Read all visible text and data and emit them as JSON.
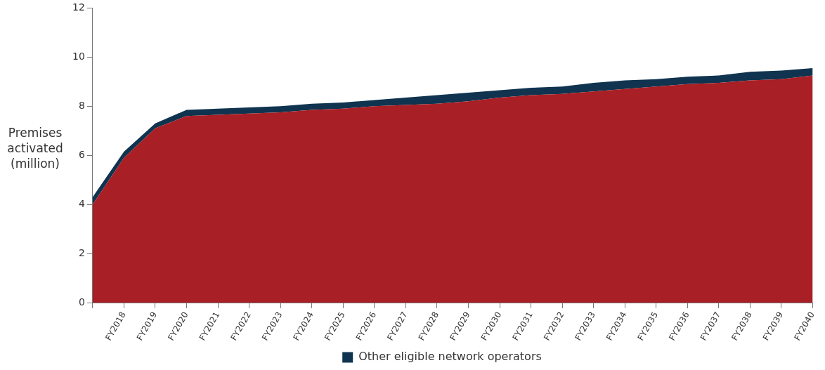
{
  "chart_data": {
    "type": "area",
    "stacked": true,
    "ylabel": "Premises activated (million)",
    "categories": [
      null,
      "FY2018",
      "FY2019",
      "FY2020",
      "FY2021",
      "FY2022",
      "FY2023",
      "FY2024",
      "FY2025",
      "FY2026",
      "FY2027",
      "FY2028",
      "FY2029",
      "FY2030",
      "FY2031",
      "FY2032",
      "FY2033",
      "FY2034",
      "FY2035",
      "FY2036",
      "FY2037",
      "FY2038",
      "FY2039",
      "FY2040"
    ],
    "series": [
      {
        "color": "#a81f25",
        "values": [
          4.0,
          5.9,
          7.1,
          7.6,
          7.65,
          7.7,
          7.75,
          7.85,
          7.9,
          8.0,
          8.05,
          8.1,
          8.2,
          8.35,
          8.45,
          8.5,
          8.6,
          8.7,
          8.8,
          8.9,
          8.95,
          9.05,
          9.1,
          9.25
        ]
      },
      {
        "name": "Other eligible network operators",
        "color": "#10344f",
        "values": [
          0.3,
          0.25,
          0.2,
          0.25,
          0.25,
          0.25,
          0.25,
          0.25,
          0.25,
          0.25,
          0.3,
          0.35,
          0.35,
          0.3,
          0.3,
          0.3,
          0.35,
          0.35,
          0.3,
          0.3,
          0.3,
          0.35,
          0.35,
          0.3
        ]
      }
    ],
    "ylim": [
      0,
      12
    ],
    "yticks": [
      0,
      2,
      4,
      6,
      8,
      10,
      12
    ],
    "legend": "bottom"
  }
}
